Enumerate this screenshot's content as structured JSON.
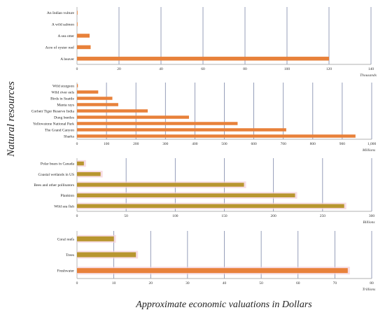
{
  "ylabel": "Natural resources",
  "xlabel": "Approximate economic valuations in Dollars",
  "colors": {
    "bar": "#e8813a",
    "olive_bar": "#b8962f",
    "grid": "#7b86a8",
    "shadow": "#f3cfd8"
  },
  "chart_data": [
    {
      "type": "bar",
      "orientation": "horizontal",
      "unit_label": "Thousands",
      "xlim": [
        0,
        140
      ],
      "xticks": [
        "0",
        "20",
        "40",
        "60",
        "80",
        "100",
        "120",
        "140"
      ],
      "categories": [
        "An Indian vulture",
        "A wild salmon",
        "A sea otter",
        "Acre of oyster reef",
        "A beaver"
      ],
      "values": [
        0.05,
        0.1,
        6,
        6.5,
        120
      ],
      "grid": true
    },
    {
      "type": "bar",
      "orientation": "horizontal",
      "unit_label": "Millions",
      "xlim": [
        0,
        1000
      ],
      "xticks": [
        "0",
        "100",
        "200",
        "300",
        "400",
        "500",
        "600",
        "700",
        "800",
        "900",
        "1,000"
      ],
      "categories": [
        "Wild sturgeon",
        "Wild river eels",
        "Birds in Seattle",
        "Manta rays",
        "Corbett Tiger Reserve India",
        "Dung beetles",
        "Yellowstone National Park",
        "The Grand Canyon",
        "Sharks"
      ],
      "values": [
        3,
        72,
        120,
        140,
        240,
        380,
        545,
        710,
        945
      ],
      "grid": true
    },
    {
      "type": "bar",
      "orientation": "horizontal",
      "unit_label": "Billions",
      "xlim": [
        0,
        300
      ],
      "xticks": [
        "0",
        "50",
        "100",
        "150",
        "200",
        "250",
        "300"
      ],
      "categories": [
        "Polar bears in Canada",
        "Coastal wetlands in US",
        "Bees and other pollinators",
        "Plankton",
        "Wild sea fish"
      ],
      "values": [
        7,
        24,
        170,
        222,
        272
      ],
      "grid": true
    },
    {
      "type": "bar",
      "orientation": "horizontal",
      "unit_label": "Trillions",
      "xlim": [
        0,
        80
      ],
      "xticks": [
        "0",
        "10",
        "20",
        "30",
        "40",
        "50",
        "60",
        "70",
        "80"
      ],
      "categories": [
        "Coral reefs",
        "Trees",
        "Freshwater"
      ],
      "values": [
        10,
        16,
        73.5
      ],
      "grid": true
    }
  ]
}
